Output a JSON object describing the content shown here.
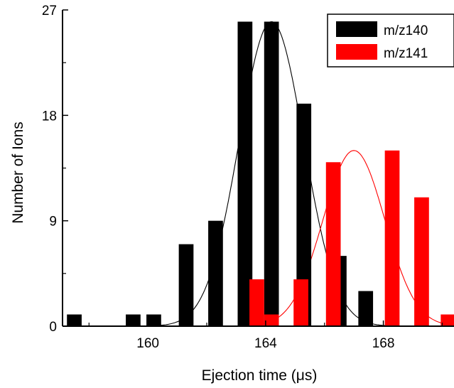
{
  "chart_data": {
    "type": "bar",
    "xlabel": "Ejection time (μs)",
    "ylabel": "Number of Ions",
    "xlim": [
      157.1,
      170.4
    ],
    "ylim": [
      0,
      27
    ],
    "xticks": [
      160,
      164,
      168
    ],
    "yticks": [
      0,
      9,
      18,
      27
    ],
    "bar_width_us": 0.5,
    "legend_position": "top-right",
    "series": [
      {
        "name": "m/z140",
        "color": "#000000",
        "x": [
          157.5,
          159.5,
          160.2,
          161.3,
          162.3,
          163.3,
          164.2,
          165.3,
          166.5,
          167.4
        ],
        "values": [
          1,
          1,
          1,
          7,
          9,
          26,
          26,
          19,
          6,
          3
        ],
        "fit": {
          "type": "gaussian",
          "amplitude": 26,
          "center": 164.2,
          "sigma": 1.1
        }
      },
      {
        "name": "m/z141",
        "color": "#ff0000",
        "x": [
          163.7,
          164.2,
          165.2,
          166.3,
          167.2,
          168.3,
          169.3,
          170.2
        ],
        "values": [
          4,
          1,
          4,
          14,
          0,
          15,
          11,
          1
        ],
        "fit": {
          "type": "gaussian",
          "amplitude": 15,
          "center": 167.0,
          "sigma": 1.05
        }
      }
    ]
  }
}
